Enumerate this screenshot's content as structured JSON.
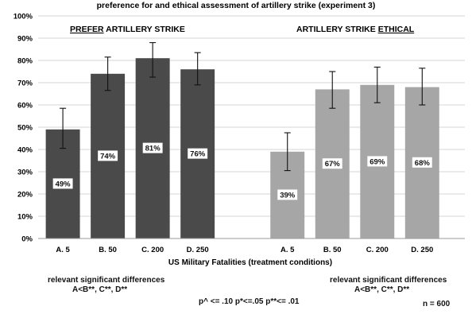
{
  "chart_data": {
    "type": "bar",
    "title": "preference for and ethical assessment of artillery strike (experiment 3)",
    "xlabel": "US Military Fatalities (treatment conditions)",
    "ylabel": "",
    "ylim": [
      0,
      1
    ],
    "yticks": [
      "0%",
      "10%",
      "20%",
      "30%",
      "40%",
      "50%",
      "60%",
      "70%",
      "80%",
      "90%",
      "100%"
    ],
    "grid": true,
    "legend": "none",
    "categories": [
      "A. 5",
      "B. 50",
      "C. 200",
      "D. 250"
    ],
    "series": [
      {
        "name": "PREFER ARTILLERY STRIKE",
        "label_underlined": "PREFER",
        "label_rest": " ARTILLERY STRIKE",
        "color": "#4a4a4a",
        "values": [
          0.49,
          0.74,
          0.81,
          0.76
        ],
        "labels": [
          "49%",
          "74%",
          "81%",
          "76%"
        ],
        "err_low": [
          0.405,
          0.665,
          0.725,
          0.69
        ],
        "err_high": [
          0.585,
          0.815,
          0.88,
          0.835
        ]
      },
      {
        "name": "ARTILLERY STRIKE ETHICAL",
        "label_rest": "ARTILLERY STRIKE ",
        "label_underlined": "ETHICAL",
        "color": "#a6a6a6",
        "values": [
          0.39,
          0.67,
          0.69,
          0.68
        ],
        "labels": [
          "39%",
          "67%",
          "69%",
          "68%"
        ],
        "err_low": [
          0.305,
          0.585,
          0.61,
          0.6
        ],
        "err_high": [
          0.475,
          0.75,
          0.77,
          0.765
        ]
      }
    ]
  },
  "notes": {
    "left_diff_title": "relevant significant differences",
    "left_diff_values": "A<B**, C**, D**",
    "right_diff_title": "relevant significant differences",
    "right_diff_values": "A<B**, C**, D**",
    "pvalues": "p^ <= .10 p*<=.05 p**<= .01",
    "n": "n = 600"
  }
}
